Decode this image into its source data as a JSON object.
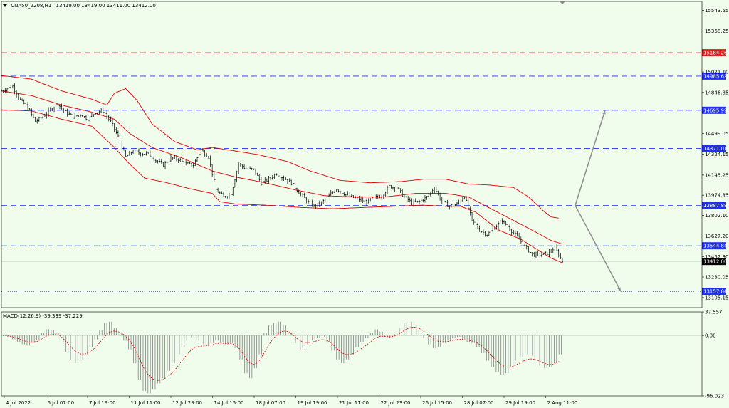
{
  "header": {
    "symbol": "CNA50_2208,H1",
    "ohlc": "13419.00 13419.00 13411.00 13412.00"
  },
  "macd_label": "MACD(12,26,9) -39.339 -37.229",
  "colors": {
    "background": "#f0fcec",
    "grid": "#e4eee0",
    "candle": "#000000",
    "bollinger": "#e00000",
    "level_blue": "#2030f0",
    "level_red": "#e02020",
    "arrow": "#909090",
    "macd_hist": "#808080",
    "macd_signal": "#e00000",
    "current_bg": "#000000"
  },
  "chart_data": {
    "type": "line",
    "series_kind": "candlestick",
    "ylim": [
      13020,
      15620
    ],
    "y_ticks": [
      "15543.55",
      "15368.25",
      "15021.10",
      "14846.85",
      "14499.05",
      "14324.15",
      "14145.25",
      "13974.35",
      "13802.10",
      "13627.20",
      "13452.30",
      "13280.05",
      "13105.15"
    ],
    "x_ticks": [
      "4 Jul 2022",
      "6 Jul 07:00",
      "7 Jul 19:00",
      "11 Jul 11:00",
      "12 Jul 23:00",
      "14 Jul 15:00",
      "18 Jul 07:00",
      "19 Jul 19:00",
      "21 Jul 11:00",
      "22 Jul 23:00",
      "26 Jul 15:00",
      "28 Jul 07:00",
      "29 Jul 19:00",
      "2 Aug 11:00"
    ],
    "levels": [
      {
        "value": 15184.26,
        "label": "15184.26",
        "color": "red",
        "style": "dashed"
      },
      {
        "value": 14985.62,
        "label": "14985.62",
        "color": "blue",
        "style": "dashed"
      },
      {
        "value": 14695.99,
        "label": "14695.99",
        "color": "blue",
        "style": "dashed"
      },
      {
        "value": 14371.01,
        "label": "14371.01",
        "color": "blue",
        "style": "dashed"
      },
      {
        "value": 13887.88,
        "label": "13887.88",
        "color": "blue",
        "style": "dashed"
      },
      {
        "value": 13544.84,
        "label": "13544.84",
        "color": "blue",
        "style": "dashed"
      },
      {
        "value": 13157.84,
        "label": "13157.84",
        "color": "blue",
        "style": "dotted"
      }
    ],
    "current_price": {
      "value": 13412.0,
      "label": "13412.00"
    },
    "price_path": [
      [
        0,
        14860
      ],
      [
        3,
        14900
      ],
      [
        5,
        14780
      ],
      [
        7,
        14720
      ],
      [
        9,
        14600
      ],
      [
        11,
        14640
      ],
      [
        13,
        14700
      ],
      [
        15,
        14750
      ],
      [
        17,
        14680
      ],
      [
        19,
        14640
      ],
      [
        21,
        14660
      ],
      [
        23,
        14620
      ],
      [
        25,
        14680
      ],
      [
        27,
        14690
      ],
      [
        29,
        14600
      ],
      [
        31,
        14470
      ],
      [
        33,
        14300
      ],
      [
        35,
        14350
      ],
      [
        37,
        14330
      ],
      [
        39,
        14330
      ],
      [
        41,
        14270
      ],
      [
        43,
        14230
      ],
      [
        45,
        14290
      ],
      [
        47,
        14280
      ],
      [
        49,
        14240
      ],
      [
        51,
        14230
      ],
      [
        53,
        14360
      ],
      [
        55,
        14300
      ],
      [
        57,
        14020
      ],
      [
        59,
        13960
      ],
      [
        61,
        13990
      ],
      [
        63,
        14240
      ],
      [
        65,
        14200
      ],
      [
        67,
        14190
      ],
      [
        69,
        14080
      ],
      [
        71,
        14110
      ],
      [
        73,
        14160
      ],
      [
        75,
        14120
      ],
      [
        77,
        14080
      ],
      [
        79,
        14000
      ],
      [
        81,
        13930
      ],
      [
        83,
        13880
      ],
      [
        85,
        13910
      ],
      [
        87,
        13970
      ],
      [
        89,
        14030
      ],
      [
        91,
        13990
      ],
      [
        93,
        13960
      ],
      [
        95,
        13940
      ],
      [
        97,
        13920
      ],
      [
        99,
        13950
      ],
      [
        101,
        13970
      ],
      [
        103,
        14050
      ],
      [
        105,
        14040
      ],
      [
        107,
        13960
      ],
      [
        109,
        13910
      ],
      [
        111,
        13920
      ],
      [
        113,
        13960
      ],
      [
        115,
        14040
      ],
      [
        117,
        13920
      ],
      [
        119,
        13880
      ],
      [
        121,
        13900
      ],
      [
        123,
        13970
      ],
      [
        125,
        13760
      ],
      [
        127,
        13680
      ],
      [
        129,
        13640
      ],
      [
        131,
        13700
      ],
      [
        133,
        13760
      ],
      [
        135,
        13690
      ],
      [
        137,
        13620
      ],
      [
        139,
        13540
      ],
      [
        141,
        13470
      ],
      [
        143,
        13470
      ],
      [
        145,
        13480
      ],
      [
        147,
        13530
      ],
      [
        149,
        13412
      ]
    ],
    "bb_upper": [
      [
        0,
        14990
      ],
      [
        8,
        14960
      ],
      [
        16,
        14860
      ],
      [
        24,
        14790
      ],
      [
        28,
        14740
      ],
      [
        30,
        14840
      ],
      [
        33,
        14880
      ],
      [
        36,
        14780
      ],
      [
        40,
        14580
      ],
      [
        46,
        14430
      ],
      [
        52,
        14360
      ],
      [
        56,
        14380
      ],
      [
        60,
        14360
      ],
      [
        68,
        14320
      ],
      [
        76,
        14260
      ],
      [
        82,
        14180
      ],
      [
        90,
        14100
      ],
      [
        98,
        14080
      ],
      [
        106,
        14090
      ],
      [
        112,
        14110
      ],
      [
        118,
        14110
      ],
      [
        124,
        14070
      ],
      [
        130,
        14060
      ],
      [
        136,
        14040
      ],
      [
        140,
        13960
      ],
      [
        144,
        13840
      ],
      [
        146,
        13790
      ],
      [
        148,
        13780
      ]
    ],
    "bb_lower": [
      [
        0,
        14700
      ],
      [
        8,
        14690
      ],
      [
        16,
        14620
      ],
      [
        24,
        14560
      ],
      [
        30,
        14380
      ],
      [
        34,
        14240
      ],
      [
        38,
        14120
      ],
      [
        44,
        14080
      ],
      [
        50,
        14030
      ],
      [
        56,
        13990
      ],
      [
        58,
        13920
      ],
      [
        62,
        13900
      ],
      [
        70,
        13890
      ],
      [
        80,
        13870
      ],
      [
        88,
        13860
      ],
      [
        96,
        13870
      ],
      [
        104,
        13880
      ],
      [
        112,
        13890
      ],
      [
        118,
        13880
      ],
      [
        122,
        13880
      ],
      [
        126,
        13830
      ],
      [
        132,
        13680
      ],
      [
        138,
        13600
      ],
      [
        142,
        13520
      ],
      [
        146,
        13440
      ],
      [
        149,
        13400
      ]
    ],
    "bb_middle": [
      [
        0,
        14860
      ],
      [
        8,
        14820
      ],
      [
        16,
        14740
      ],
      [
        24,
        14680
      ],
      [
        30,
        14620
      ],
      [
        34,
        14500
      ],
      [
        40,
        14380
      ],
      [
        48,
        14290
      ],
      [
        56,
        14180
      ],
      [
        62,
        14130
      ],
      [
        70,
        14080
      ],
      [
        78,
        14020
      ],
      [
        86,
        13970
      ],
      [
        94,
        13960
      ],
      [
        102,
        13960
      ],
      [
        110,
        13990
      ],
      [
        118,
        13990
      ],
      [
        124,
        13960
      ],
      [
        130,
        13860
      ],
      [
        136,
        13760
      ],
      [
        142,
        13660
      ],
      [
        146,
        13590
      ],
      [
        149,
        13560
      ]
    ],
    "forecast_arrows": [
      {
        "from": [
          13887.88,
          0
        ],
        "to": [
          14695.99,
          1
        ]
      },
      {
        "from": [
          13887.88,
          0
        ],
        "to": [
          13157.84,
          1
        ]
      }
    ],
    "macd": {
      "ylim": [
        -96.023,
        37.557
      ],
      "y_ticks": [
        "37.557",
        "0.00",
        "-96.023"
      ],
      "histogram": [
        0,
        -2,
        -6,
        -10,
        -14,
        -16,
        -12,
        -8,
        4,
        10,
        8,
        4,
        -10,
        -26,
        -38,
        -44,
        -38,
        -30,
        -18,
        -6,
        8,
        20,
        22,
        12,
        2,
        -8,
        -22,
        -44,
        -70,
        -88,
        -92,
        -86,
        -76,
        -68,
        -56,
        -44,
        -30,
        -18,
        -8,
        -3,
        -8,
        -14,
        -16,
        -12,
        -8,
        -10,
        -14,
        -12,
        -20,
        -38,
        -60,
        -68,
        -52,
        -30,
        4,
        16,
        20,
        22,
        16,
        4,
        -12,
        -22,
        -20,
        -14,
        -8,
        -4,
        -2,
        -10,
        -24,
        -38,
        -44,
        -38,
        -30,
        -18,
        -10,
        -4,
        4,
        10,
        6,
        -2,
        -4,
        2,
        12,
        20,
        22,
        16,
        8,
        -4,
        -14,
        -20,
        -18,
        -12,
        -8,
        -4,
        -2,
        -6,
        -10,
        -12,
        -18,
        -28,
        -40,
        -50,
        -58,
        -62,
        -60,
        -50,
        -40,
        -34,
        -30,
        -32,
        -40,
        -48,
        -52,
        -50,
        -44,
        -30
      ]
    }
  }
}
